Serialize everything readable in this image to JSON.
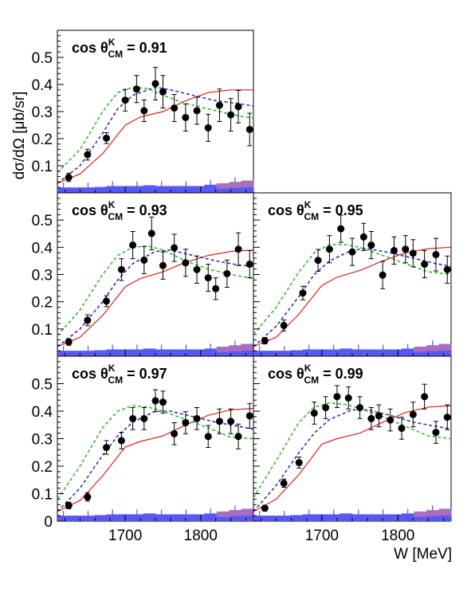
{
  "figure": {
    "ylabel": "dσ/dΩ [μb/sr]",
    "xlabel": "W [MeV]",
    "x_ticks": [
      "1700",
      "1800"
    ],
    "y_ticks": [
      "0.1",
      "0.2",
      "0.3",
      "0.4",
      "0.5"
    ],
    "y_ticks_bottom": [
      "0",
      "0.1",
      "0.2",
      "0.3",
      "0.4",
      "0.5"
    ],
    "title_prefix": "cos",
    "title_symbol": "θ",
    "title_superscript": "K",
    "title_subscript": "CM"
  },
  "chart_data": [
    {
      "type": "scatter",
      "panel": "cos θCM K = 0.91",
      "title_value": "= 0.91",
      "xlim": [
        1610,
        1870
      ],
      "ylim": [
        0,
        0.6
      ],
      "points": [
        {
          "x": 1625,
          "y": 0.057,
          "err": 0.015
        },
        {
          "x": 1650,
          "y": 0.141,
          "err": 0.02
        },
        {
          "x": 1675,
          "y": 0.202,
          "err": 0.02
        },
        {
          "x": 1700,
          "y": 0.342,
          "err": 0.04
        },
        {
          "x": 1715,
          "y": 0.383,
          "err": 0.05
        },
        {
          "x": 1725,
          "y": 0.303,
          "err": 0.04
        },
        {
          "x": 1740,
          "y": 0.403,
          "err": 0.06
        },
        {
          "x": 1750,
          "y": 0.373,
          "err": 0.06
        },
        {
          "x": 1765,
          "y": 0.313,
          "err": 0.05
        },
        {
          "x": 1780,
          "y": 0.278,
          "err": 0.05
        },
        {
          "x": 1795,
          "y": 0.303,
          "err": 0.05
        },
        {
          "x": 1810,
          "y": 0.24,
          "err": 0.05
        },
        {
          "x": 1825,
          "y": 0.323,
          "err": 0.06
        },
        {
          "x": 1840,
          "y": 0.288,
          "err": 0.06
        },
        {
          "x": 1850,
          "y": 0.318,
          "err": 0.06
        },
        {
          "x": 1865,
          "y": 0.234,
          "err": 0.06
        }
      ],
      "curves": {
        "red": [
          [
            1610,
            0.035
          ],
          [
            1640,
            0.07
          ],
          [
            1670,
            0.145
          ],
          [
            1700,
            0.25
          ],
          [
            1720,
            0.28
          ],
          [
            1750,
            0.3
          ],
          [
            1780,
            0.34
          ],
          [
            1810,
            0.37
          ],
          [
            1840,
            0.38
          ],
          [
            1870,
            0.38
          ]
        ],
        "green": [
          [
            1610,
            0.075
          ],
          [
            1640,
            0.16
          ],
          [
            1670,
            0.3
          ],
          [
            1690,
            0.37
          ],
          [
            1710,
            0.39
          ],
          [
            1730,
            0.385
          ],
          [
            1750,
            0.36
          ],
          [
            1780,
            0.33
          ],
          [
            1810,
            0.31
          ],
          [
            1840,
            0.29
          ],
          [
            1870,
            0.275
          ]
        ],
        "blue": [
          [
            1610,
            0.035
          ],
          [
            1640,
            0.1
          ],
          [
            1670,
            0.22
          ],
          [
            1690,
            0.31
          ],
          [
            1710,
            0.36
          ],
          [
            1740,
            0.39
          ],
          [
            1760,
            0.38
          ],
          [
            1790,
            0.36
          ],
          [
            1820,
            0.34
          ],
          [
            1850,
            0.33
          ],
          [
            1870,
            0.32
          ]
        ]
      },
      "bands": [
        0.02,
        0.02,
        0.02,
        0.022,
        0.025,
        0.025,
        0.025,
        0.028,
        0.025,
        0.025,
        0.025,
        0.025,
        0.03,
        0.035,
        0.04,
        0.045
      ]
    },
    {
      "type": "scatter",
      "panel": "cos θCM K = 0.93",
      "title_value": "= 0.93",
      "xlim": [
        1610,
        1870
      ],
      "ylim": [
        0,
        0.6
      ],
      "points": [
        {
          "x": 1625,
          "y": 0.052,
          "err": 0.012
        },
        {
          "x": 1650,
          "y": 0.132,
          "err": 0.02
        },
        {
          "x": 1675,
          "y": 0.202,
          "err": 0.02
        },
        {
          "x": 1695,
          "y": 0.318,
          "err": 0.04
        },
        {
          "x": 1710,
          "y": 0.408,
          "err": 0.05
        },
        {
          "x": 1725,
          "y": 0.353,
          "err": 0.05
        },
        {
          "x": 1735,
          "y": 0.451,
          "err": 0.06
        },
        {
          "x": 1750,
          "y": 0.333,
          "err": 0.05
        },
        {
          "x": 1765,
          "y": 0.398,
          "err": 0.05
        },
        {
          "x": 1780,
          "y": 0.343,
          "err": 0.05
        },
        {
          "x": 1795,
          "y": 0.318,
          "err": 0.05
        },
        {
          "x": 1810,
          "y": 0.288,
          "err": 0.05
        },
        {
          "x": 1820,
          "y": 0.248,
          "err": 0.04
        },
        {
          "x": 1835,
          "y": 0.303,
          "err": 0.05
        },
        {
          "x": 1850,
          "y": 0.393,
          "err": 0.06
        },
        {
          "x": 1865,
          "y": 0.338,
          "err": 0.05
        }
      ],
      "curves": {
        "red": [
          [
            1610,
            0.035
          ],
          [
            1640,
            0.07
          ],
          [
            1670,
            0.15
          ],
          [
            1700,
            0.255
          ],
          [
            1720,
            0.285
          ],
          [
            1750,
            0.31
          ],
          [
            1780,
            0.345
          ],
          [
            1810,
            0.37
          ],
          [
            1840,
            0.385
          ],
          [
            1870,
            0.39
          ]
        ],
        "green": [
          [
            1610,
            0.075
          ],
          [
            1640,
            0.17
          ],
          [
            1670,
            0.3
          ],
          [
            1690,
            0.37
          ],
          [
            1710,
            0.4
          ],
          [
            1730,
            0.405
          ],
          [
            1750,
            0.39
          ],
          [
            1780,
            0.35
          ],
          [
            1810,
            0.32
          ],
          [
            1840,
            0.3
          ],
          [
            1870,
            0.285
          ]
        ],
        "blue": [
          [
            1610,
            0.035
          ],
          [
            1640,
            0.1
          ],
          [
            1670,
            0.2
          ],
          [
            1690,
            0.28
          ],
          [
            1710,
            0.34
          ],
          [
            1740,
            0.385
          ],
          [
            1760,
            0.39
          ],
          [
            1790,
            0.37
          ],
          [
            1820,
            0.35
          ],
          [
            1850,
            0.335
          ],
          [
            1870,
            0.33
          ]
        ]
      },
      "bands": [
        0.02,
        0.02,
        0.02,
        0.022,
        0.025,
        0.025,
        0.025,
        0.028,
        0.025,
        0.025,
        0.025,
        0.025,
        0.028,
        0.035,
        0.04,
        0.045
      ]
    },
    {
      "type": "scatter",
      "panel": "cos θCM K = 0.95",
      "title_value": "= 0.95",
      "xlim": [
        1610,
        1870
      ],
      "ylim": [
        0,
        0.6
      ],
      "points": [
        {
          "x": 1625,
          "y": 0.057,
          "err": 0.012
        },
        {
          "x": 1650,
          "y": 0.113,
          "err": 0.02
        },
        {
          "x": 1675,
          "y": 0.232,
          "err": 0.025
        },
        {
          "x": 1695,
          "y": 0.352,
          "err": 0.04
        },
        {
          "x": 1710,
          "y": 0.393,
          "err": 0.05
        },
        {
          "x": 1725,
          "y": 0.468,
          "err": 0.05
        },
        {
          "x": 1740,
          "y": 0.383,
          "err": 0.05
        },
        {
          "x": 1755,
          "y": 0.438,
          "err": 0.05
        },
        {
          "x": 1765,
          "y": 0.408,
          "err": 0.05
        },
        {
          "x": 1780,
          "y": 0.298,
          "err": 0.05
        },
        {
          "x": 1795,
          "y": 0.388,
          "err": 0.05
        },
        {
          "x": 1810,
          "y": 0.393,
          "err": 0.05
        },
        {
          "x": 1820,
          "y": 0.378,
          "err": 0.05
        },
        {
          "x": 1835,
          "y": 0.338,
          "err": 0.05
        },
        {
          "x": 1850,
          "y": 0.373,
          "err": 0.06
        },
        {
          "x": 1865,
          "y": 0.318,
          "err": 0.05
        }
      ],
      "curves": {
        "red": [
          [
            1610,
            0.035
          ],
          [
            1640,
            0.07
          ],
          [
            1670,
            0.155
          ],
          [
            1700,
            0.26
          ],
          [
            1720,
            0.29
          ],
          [
            1750,
            0.315
          ],
          [
            1780,
            0.35
          ],
          [
            1810,
            0.38
          ],
          [
            1840,
            0.395
          ],
          [
            1870,
            0.4
          ]
        ],
        "green": [
          [
            1610,
            0.08
          ],
          [
            1640,
            0.18
          ],
          [
            1670,
            0.31
          ],
          [
            1690,
            0.38
          ],
          [
            1710,
            0.41
          ],
          [
            1730,
            0.41
          ],
          [
            1750,
            0.4
          ],
          [
            1780,
            0.37
          ],
          [
            1810,
            0.34
          ],
          [
            1840,
            0.31
          ],
          [
            1870,
            0.3
          ]
        ],
        "blue": [
          [
            1610,
            0.035
          ],
          [
            1640,
            0.11
          ],
          [
            1670,
            0.22
          ],
          [
            1690,
            0.3
          ],
          [
            1710,
            0.35
          ],
          [
            1740,
            0.39
          ],
          [
            1760,
            0.395
          ],
          [
            1790,
            0.38
          ],
          [
            1820,
            0.36
          ],
          [
            1850,
            0.34
          ],
          [
            1870,
            0.33
          ]
        ]
      },
      "bands": [
        0.02,
        0.02,
        0.02,
        0.022,
        0.025,
        0.025,
        0.025,
        0.028,
        0.025,
        0.025,
        0.025,
        0.025,
        0.028,
        0.035,
        0.04,
        0.045
      ]
    },
    {
      "type": "scatter",
      "panel": "cos θCM K = 0.97",
      "title_value": "= 0.97",
      "xlim": [
        1610,
        1870
      ],
      "ylim": [
        0,
        0.6
      ],
      "points": [
        {
          "x": 1625,
          "y": 0.057,
          "err": 0.012
        },
        {
          "x": 1650,
          "y": 0.088,
          "err": 0.015
        },
        {
          "x": 1675,
          "y": 0.268,
          "err": 0.025
        },
        {
          "x": 1695,
          "y": 0.293,
          "err": 0.03
        },
        {
          "x": 1710,
          "y": 0.373,
          "err": 0.04
        },
        {
          "x": 1725,
          "y": 0.373,
          "err": 0.04
        },
        {
          "x": 1740,
          "y": 0.438,
          "err": 0.04
        },
        {
          "x": 1750,
          "y": 0.433,
          "err": 0.04
        },
        {
          "x": 1765,
          "y": 0.318,
          "err": 0.04
        },
        {
          "x": 1780,
          "y": 0.358,
          "err": 0.04
        },
        {
          "x": 1795,
          "y": 0.373,
          "err": 0.04
        },
        {
          "x": 1810,
          "y": 0.308,
          "err": 0.04
        },
        {
          "x": 1825,
          "y": 0.363,
          "err": 0.045
        },
        {
          "x": 1840,
          "y": 0.363,
          "err": 0.045
        },
        {
          "x": 1850,
          "y": 0.308,
          "err": 0.045
        },
        {
          "x": 1865,
          "y": 0.383,
          "err": 0.045
        }
      ],
      "curves": {
        "red": [
          [
            1610,
            0.035
          ],
          [
            1640,
            0.075
          ],
          [
            1670,
            0.165
          ],
          [
            1700,
            0.27
          ],
          [
            1720,
            0.29
          ],
          [
            1750,
            0.31
          ],
          [
            1780,
            0.35
          ],
          [
            1810,
            0.385
          ],
          [
            1840,
            0.405
          ],
          [
            1870,
            0.41
          ]
        ],
        "green": [
          [
            1610,
            0.08
          ],
          [
            1640,
            0.2
          ],
          [
            1670,
            0.34
          ],
          [
            1690,
            0.4
          ],
          [
            1710,
            0.42
          ],
          [
            1730,
            0.415
          ],
          [
            1750,
            0.4
          ],
          [
            1780,
            0.37
          ],
          [
            1810,
            0.34
          ],
          [
            1840,
            0.305
          ],
          [
            1870,
            0.3
          ]
        ],
        "blue": [
          [
            1610,
            0.035
          ],
          [
            1640,
            0.12
          ],
          [
            1670,
            0.24
          ],
          [
            1690,
            0.31
          ],
          [
            1710,
            0.36
          ],
          [
            1740,
            0.4
          ],
          [
            1760,
            0.4
          ],
          [
            1790,
            0.38
          ],
          [
            1820,
            0.36
          ],
          [
            1850,
            0.345
          ],
          [
            1870,
            0.335
          ]
        ]
      },
      "bands": [
        0.02,
        0.02,
        0.02,
        0.022,
        0.025,
        0.025,
        0.025,
        0.028,
        0.025,
        0.025,
        0.025,
        0.025,
        0.028,
        0.035,
        0.04,
        0.045
      ]
    },
    {
      "type": "scatter",
      "panel": "cos θCM K = 0.99",
      "title_value": "= 0.99",
      "xlim": [
        1610,
        1870
      ],
      "ylim": [
        0,
        0.6
      ],
      "points": [
        {
          "x": 1625,
          "y": 0.047,
          "err": 0.01
        },
        {
          "x": 1650,
          "y": 0.138,
          "err": 0.015
        },
        {
          "x": 1670,
          "y": 0.213,
          "err": 0.02
        },
        {
          "x": 1690,
          "y": 0.393,
          "err": 0.04
        },
        {
          "x": 1705,
          "y": 0.413,
          "err": 0.04
        },
        {
          "x": 1720,
          "y": 0.453,
          "err": 0.04
        },
        {
          "x": 1735,
          "y": 0.448,
          "err": 0.04
        },
        {
          "x": 1750,
          "y": 0.413,
          "err": 0.04
        },
        {
          "x": 1765,
          "y": 0.373,
          "err": 0.04
        },
        {
          "x": 1775,
          "y": 0.383,
          "err": 0.04
        },
        {
          "x": 1790,
          "y": 0.368,
          "err": 0.04
        },
        {
          "x": 1805,
          "y": 0.338,
          "err": 0.04
        },
        {
          "x": 1820,
          "y": 0.388,
          "err": 0.045
        },
        {
          "x": 1835,
          "y": 0.453,
          "err": 0.045
        },
        {
          "x": 1850,
          "y": 0.323,
          "err": 0.04
        },
        {
          "x": 1865,
          "y": 0.378,
          "err": 0.045
        }
      ],
      "curves": {
        "red": [
          [
            1610,
            0.035
          ],
          [
            1640,
            0.08
          ],
          [
            1670,
            0.17
          ],
          [
            1700,
            0.28
          ],
          [
            1720,
            0.3
          ],
          [
            1750,
            0.32
          ],
          [
            1780,
            0.36
          ],
          [
            1810,
            0.395
          ],
          [
            1840,
            0.415
          ],
          [
            1870,
            0.42
          ]
        ],
        "green": [
          [
            1610,
            0.085
          ],
          [
            1640,
            0.22
          ],
          [
            1670,
            0.36
          ],
          [
            1690,
            0.415
          ],
          [
            1710,
            0.43
          ],
          [
            1730,
            0.425
          ],
          [
            1750,
            0.41
          ],
          [
            1780,
            0.38
          ],
          [
            1810,
            0.345
          ],
          [
            1840,
            0.31
          ],
          [
            1870,
            0.3
          ]
        ],
        "blue": [
          [
            1610,
            0.035
          ],
          [
            1640,
            0.13
          ],
          [
            1670,
            0.25
          ],
          [
            1690,
            0.32
          ],
          [
            1710,
            0.37
          ],
          [
            1740,
            0.405
          ],
          [
            1760,
            0.405
          ],
          [
            1790,
            0.385
          ],
          [
            1820,
            0.36
          ],
          [
            1850,
            0.345
          ],
          [
            1870,
            0.335
          ]
        ]
      },
      "bands": [
        0.02,
        0.02,
        0.02,
        0.022,
        0.025,
        0.025,
        0.025,
        0.028,
        0.025,
        0.025,
        0.025,
        0.025,
        0.028,
        0.035,
        0.04,
        0.045
      ]
    }
  ]
}
